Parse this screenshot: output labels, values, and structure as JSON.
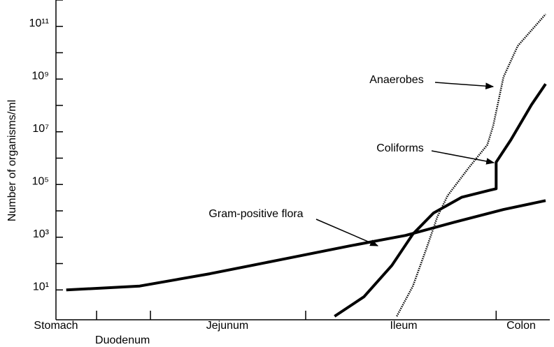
{
  "chart_data": {
    "type": "line",
    "ylabel": "Number of organisms/ml",
    "log_y": true,
    "ylim": [
      1,
      1000000000000
    ],
    "yticks": [
      {
        "value": 10,
        "label": "10¹"
      },
      {
        "value": 1000,
        "label": "10³"
      },
      {
        "value": 100000,
        "label": "10⁵"
      },
      {
        "value": 10000000,
        "label": "10⁷"
      },
      {
        "value": 1000000000,
        "label": "10⁹"
      },
      {
        "value": 100000000000,
        "label": "10¹¹"
      }
    ],
    "yminor_ticks": [
      100,
      10000,
      1000000,
      100000000,
      10000000000,
      1000000000000
    ],
    "xlim": [
      0,
      100
    ],
    "x_boundaries": [
      8.3,
      19.3,
      51,
      89.9
    ],
    "segments": [
      {
        "label": "Stomach",
        "x": 0
      },
      {
        "label": "Duodenum",
        "x": 13.6
      },
      {
        "label": "Jejunum",
        "x": 35
      },
      {
        "label": "Ileum",
        "x": 71
      },
      {
        "label": "Colon",
        "x": 95
      }
    ],
    "series": [
      {
        "name": "Gram-positive flora",
        "color": "#000000",
        "dotted": false,
        "x": [
          2.1,
          17.1,
          31.4,
          45.7,
          60,
          71.4,
          81.4,
          91.4,
          100
        ],
        "values": [
          10,
          14,
          41,
          138,
          468,
          1170,
          3720,
          11200,
          24500
        ]
      },
      {
        "name": "Coliforms",
        "color": "#000000",
        "dotted": false,
        "x": [
          56.9,
          62.9,
          68.6,
          72.9,
          77.1,
          82.9,
          88.6,
          89.9,
          89.9,
          92.9,
          97.1,
          100
        ],
        "values": [
          1,
          5.5,
          85,
          1320,
          8300,
          33000,
          61000,
          69000,
          700000,
          4900000,
          105000000,
          650000000
        ]
      },
      {
        "name": "Anaerobes",
        "color": "#000000",
        "dotted": true,
        "x": [
          69.6,
          72.9,
          75.7,
          77.9,
          80,
          84.3,
          88.1,
          89.3,
          91.4,
          94.3,
          100
        ],
        "values": [
          1,
          14,
          390,
          6000,
          38000,
          430000,
          3200000,
          17000000,
          1200000000,
          18000000000,
          290000000000
        ]
      }
    ]
  }
}
